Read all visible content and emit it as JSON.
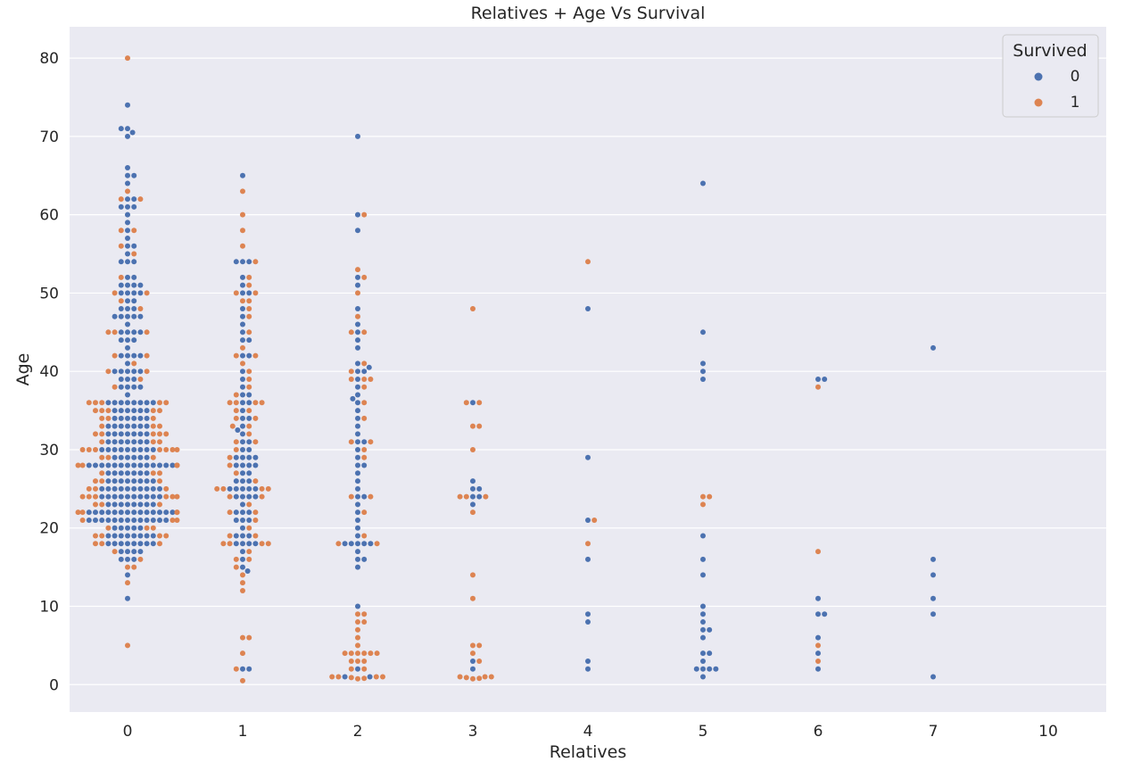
{
  "chart_data": {
    "type": "scatter",
    "subtype": "swarm",
    "title": "Relatives + Age Vs Survival",
    "xlabel": "Relatives",
    "ylabel": "Age",
    "categories": [
      "0",
      "1",
      "2",
      "3",
      "4",
      "5",
      "6",
      "7",
      "10"
    ],
    "ylim": [
      -3.5,
      84
    ],
    "yticks": [
      0,
      10,
      20,
      30,
      40,
      50,
      60,
      70,
      80
    ],
    "grid": true,
    "legend": {
      "title": "Survived",
      "placement": "top-right",
      "entries": [
        {
          "label": "0",
          "color": "#4c72b0"
        },
        {
          "label": "1",
          "color": "#dd8452"
        }
      ]
    },
    "series": [
      {
        "name": "0",
        "color": "#4c72b0",
        "groups": {
          "0": [
            11,
            14,
            16,
            16,
            16,
            17,
            17,
            17,
            17,
            18,
            18,
            18,
            18,
            18,
            18,
            18,
            18,
            19,
            19,
            19,
            19,
            19,
            19,
            19,
            19,
            20,
            20,
            20,
            20,
            20,
            21,
            21,
            21,
            21,
            21,
            21,
            21,
            21,
            21,
            21,
            21,
            21,
            21,
            22,
            22,
            22,
            22,
            22,
            22,
            22,
            22,
            22,
            22,
            22,
            22,
            22,
            22,
            23,
            23,
            23,
            23,
            23,
            23,
            23,
            23,
            24,
            24,
            24,
            24,
            24,
            24,
            24,
            24,
            24,
            24,
            25,
            25,
            25,
            25,
            25,
            25,
            25,
            25,
            25,
            25,
            26,
            26,
            26,
            26,
            26,
            26,
            26,
            26,
            27,
            27,
            27,
            27,
            27,
            27,
            27,
            28,
            28,
            28,
            28,
            28,
            28,
            28,
            28,
            28,
            28,
            28,
            28,
            28,
            28,
            29,
            29,
            29,
            29,
            29,
            29,
            30,
            30,
            30,
            30,
            30,
            30,
            30,
            30,
            30,
            31,
            31,
            31,
            31,
            31,
            31,
            31,
            32,
            32,
            32,
            32,
            32,
            32,
            32,
            33,
            33,
            33,
            33,
            33,
            33,
            33,
            34,
            34,
            34,
            34,
            34,
            34,
            35,
            35,
            35,
            35,
            35,
            35,
            36,
            36,
            36,
            36,
            36,
            36,
            36,
            36,
            37,
            38,
            38,
            38,
            38,
            39,
            39,
            39,
            40,
            40,
            40,
            40,
            40,
            41,
            42,
            42,
            42,
            42,
            43,
            44,
            44,
            44,
            45,
            45,
            45,
            45,
            46,
            47,
            47,
            47,
            47,
            47,
            48,
            48,
            48,
            49,
            49,
            50,
            50,
            50,
            50,
            51,
            51,
            51,
            51,
            52,
            52,
            54,
            54,
            54,
            55,
            56,
            56,
            57,
            58,
            59,
            60,
            61,
            61,
            61,
            62,
            62,
            64,
            65,
            65,
            66,
            70,
            70.5,
            71,
            71,
            74
          ],
          "1": [
            2,
            2,
            14.5,
            15,
            16,
            17,
            18,
            18,
            18,
            18,
            19,
            19,
            19,
            20,
            21,
            21,
            21,
            22,
            22,
            22,
            23,
            24,
            24,
            24,
            24,
            25,
            25,
            25,
            25,
            25,
            26,
            26,
            26,
            27,
            27,
            28,
            28,
            28,
            28,
            29,
            29,
            29,
            29,
            30,
            30,
            31,
            31,
            32,
            32.5,
            33,
            34,
            34,
            35,
            36,
            36,
            37,
            37,
            38,
            39,
            40,
            42,
            42,
            44,
            44,
            45,
            46,
            47,
            48,
            50,
            50,
            51,
            52,
            54,
            54,
            54,
            65
          ],
          "2": [
            1,
            1,
            2,
            10,
            15,
            16,
            16,
            17,
            18,
            18,
            18,
            18,
            18,
            19,
            20,
            21,
            22,
            23,
            24,
            24,
            25,
            26,
            27,
            28,
            28,
            29,
            30,
            31,
            31,
            32,
            33,
            34,
            35,
            36,
            36.5,
            37,
            38,
            39,
            40,
            40,
            40.5,
            41,
            43,
            44,
            45,
            46,
            48,
            51,
            52,
            58,
            60,
            70
          ],
          "3": [
            2,
            3,
            23,
            24,
            24,
            25,
            25,
            26,
            36
          ],
          "4": [
            2,
            3,
            8,
            9,
            16,
            21,
            29,
            48
          ],
          "5": [
            1,
            2,
            2,
            2,
            2,
            3,
            4,
            4,
            6,
            7,
            7,
            8,
            9,
            10,
            14,
            16,
            19,
            39,
            40,
            41,
            45,
            64
          ],
          "6": [
            2,
            4,
            6,
            9,
            9,
            11,
            39,
            39
          ],
          "7": [
            1,
            9,
            11,
            14,
            16,
            43
          ],
          "10": []
        }
      },
      {
        "name": "1",
        "color": "#dd8452",
        "groups": {
          "0": [
            5,
            13,
            15,
            15,
            16,
            17,
            18,
            18,
            18,
            19,
            19,
            19,
            19,
            20,
            20,
            20,
            21,
            21,
            21,
            22,
            22,
            22,
            22,
            23,
            23,
            23,
            24,
            24,
            24,
            24,
            24,
            24,
            25,
            25,
            25,
            26,
            26,
            26,
            27,
            27,
            27,
            28,
            28,
            28,
            28,
            28,
            29,
            29,
            29,
            30,
            30,
            30,
            30,
            30,
            30,
            30,
            31,
            31,
            31,
            32,
            32,
            32,
            32,
            32,
            33,
            33,
            33,
            34,
            34,
            34,
            35,
            35,
            35,
            35,
            35,
            36,
            36,
            36,
            36,
            36,
            38,
            39,
            40,
            40,
            41,
            42,
            42,
            45,
            45,
            45,
            48,
            49,
            50,
            50,
            52,
            55,
            56,
            58,
            58,
            62,
            62,
            63,
            80
          ],
          "1": [
            0.5,
            2,
            4,
            6,
            6,
            12,
            13,
            14,
            15,
            16,
            16,
            17,
            18,
            18,
            18,
            18,
            19,
            19,
            20,
            21,
            22,
            22,
            23,
            24,
            24,
            25,
            25,
            25,
            25,
            26,
            27,
            28,
            29,
            30,
            31,
            31,
            32,
            33,
            33,
            34,
            34,
            35,
            35,
            36,
            36,
            36,
            36,
            37,
            38,
            39,
            40,
            41,
            42,
            42,
            43,
            45,
            47,
            48,
            49,
            49,
            50,
            50,
            51,
            52,
            54,
            56,
            58,
            60,
            63
          ],
          "2": [
            0.75,
            0.8,
            0.9,
            1,
            1,
            1,
            1,
            2,
            2,
            3,
            3,
            3,
            4,
            4,
            4,
            4,
            4,
            4,
            5,
            6,
            7,
            8,
            8,
            9,
            9,
            18,
            18,
            19,
            22,
            24,
            24,
            29,
            30,
            31,
            31,
            34,
            36,
            38,
            39,
            39,
            39,
            40,
            41,
            45,
            45,
            47,
            50,
            52,
            53,
            60
          ],
          "3": [
            0.75,
            0.8,
            0.9,
            1,
            1,
            1,
            3,
            4,
            5,
            5,
            11,
            14,
            22,
            24,
            24,
            24,
            30,
            33,
            33,
            36,
            36,
            48
          ],
          "4": [
            18,
            21,
            54
          ],
          "5": [
            23,
            24,
            24
          ],
          "6": [
            3,
            5,
            17,
            38
          ],
          "7": [],
          "10": []
        }
      }
    ]
  }
}
